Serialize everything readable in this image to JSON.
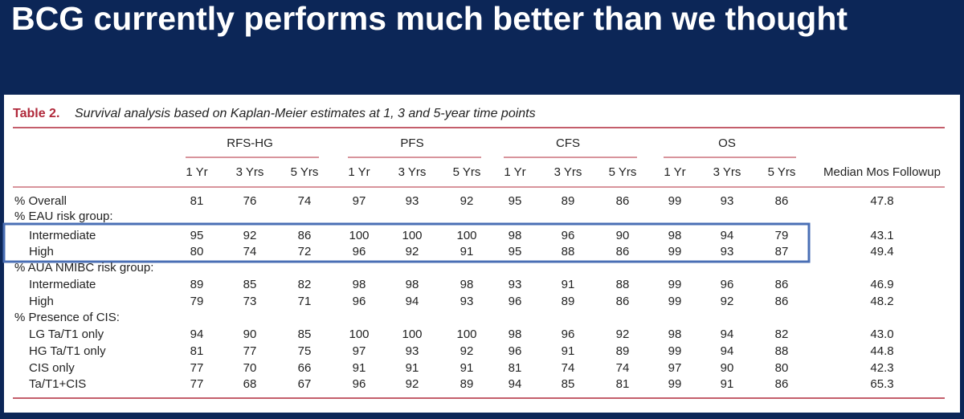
{
  "header": {
    "title": "BCG currently performs much better than we thought"
  },
  "table": {
    "caption_label": "Table 2.",
    "caption": "Survival analysis based on Kaplan-Meier estimates at 1, 3 and 5-year time points",
    "groups": [
      "RFS-HG",
      "PFS",
      "CFS",
      "OS"
    ],
    "columns": [
      "1 Yr",
      "3 Yrs",
      "5 Yrs",
      "1 Yr",
      "3 Yrs",
      "5 Yrs",
      "1 Yr",
      "3 Yrs",
      "5 Yrs",
      "1 Yr",
      "3 Yrs",
      "5 Yrs",
      "Median Mos Followup"
    ],
    "rows": [
      {
        "label": "% Overall",
        "values": [
          "81",
          "76",
          "74",
          "97",
          "93",
          "92",
          "95",
          "89",
          "86",
          "99",
          "93",
          "86",
          "47.8"
        ]
      },
      {
        "label": "% EAU risk group:",
        "rows": [
          {
            "label": "Intermediate",
            "values": [
              "95",
              "92",
              "86",
              "100",
              "100",
              "100",
              "98",
              "96",
              "90",
              "98",
              "94",
              "79",
              "43.1"
            ]
          },
          {
            "label": "High",
            "values": [
              "80",
              "74",
              "72",
              "96",
              "92",
              "91",
              "95",
              "88",
              "86",
              "99",
              "93",
              "87",
              "49.4"
            ]
          }
        ]
      },
      {
        "label": "% AUA NMIBC risk group:",
        "rows": [
          {
            "label": "Intermediate",
            "values": [
              "89",
              "85",
              "82",
              "98",
              "98",
              "98",
              "93",
              "91",
              "88",
              "99",
              "96",
              "86",
              "46.9"
            ]
          },
          {
            "label": "High",
            "values": [
              "79",
              "73",
              "71",
              "96",
              "94",
              "93",
              "96",
              "89",
              "86",
              "99",
              "92",
              "86",
              "48.2"
            ]
          }
        ]
      },
      {
        "label": "% Presence of CIS:",
        "rows": [
          {
            "label": "LG Ta/T1 only",
            "values": [
              "94",
              "90",
              "85",
              "100",
              "100",
              "100",
              "98",
              "96",
              "92",
              "98",
              "94",
              "82",
              "43.0"
            ]
          },
          {
            "label": "HG Ta/T1 only",
            "values": [
              "81",
              "77",
              "75",
              "97",
              "93",
              "92",
              "96",
              "91",
              "89",
              "99",
              "94",
              "88",
              "44.8"
            ]
          },
          {
            "label": "CIS only",
            "values": [
              "77",
              "70",
              "66",
              "91",
              "91",
              "91",
              "81",
              "74",
              "74",
              "97",
              "90",
              "80",
              "42.3"
            ]
          },
          {
            "label": "Ta/T1+CIS",
            "values": [
              "77",
              "68",
              "67",
              "96",
              "92",
              "89",
              "94",
              "85",
              "81",
              "99",
              "91",
              "86",
              "65.3"
            ]
          }
        ]
      }
    ]
  }
}
